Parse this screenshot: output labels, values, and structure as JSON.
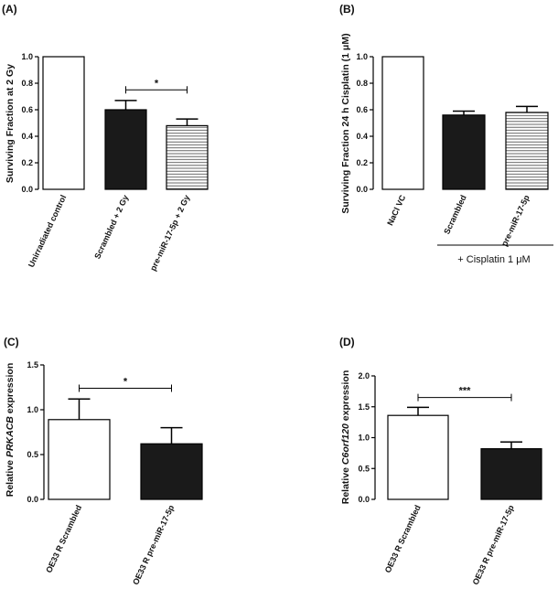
{
  "chart_data": [
    {
      "type": "bar",
      "panel_label": "(A)",
      "ylabel": "Surviving Fraction at 2 Gy",
      "ylim": [
        0,
        1.0
      ],
      "yticks": [
        "0.0",
        "0.2",
        "0.4",
        "0.6",
        "0.8",
        "1.0"
      ],
      "categories": [
        "Unirradiated control",
        "Scrambled + 2 Gy",
        "pre-miR-17-5p + 2 Gy"
      ],
      "values": [
        1.0,
        0.6,
        0.48
      ],
      "errors": [
        0,
        0.07,
        0.05
      ],
      "fills": [
        "white",
        "black",
        "hatched"
      ],
      "significance": {
        "from": 1,
        "to": 2,
        "label": "*"
      }
    },
    {
      "type": "bar",
      "panel_label": "(B)",
      "ylabel": "Surviving Fraction 24 h Cisplatin (1 μM)",
      "ylim": [
        0,
        1.0
      ],
      "yticks": [
        "0.0",
        "0.2",
        "0.4",
        "0.6",
        "0.8",
        "1.0"
      ],
      "categories": [
        "NaCl VC",
        "Scrambled",
        "pre-miR-17-5p"
      ],
      "values": [
        1.0,
        0.56,
        0.58
      ],
      "errors": [
        0,
        0.03,
        0.045
      ],
      "fills": [
        "white",
        "black",
        "hatched"
      ],
      "group_annotation": "+ Cisplatin 1  μM"
    },
    {
      "type": "bar",
      "panel_label": "(C)",
      "ylabel_pre": "Relative ",
      "ylabel_italic": "PRKACB",
      "ylabel_post": " expression",
      "ylim": [
        0,
        1.5
      ],
      "yticks": [
        "0.0",
        "0.5",
        "1.0",
        "1.5"
      ],
      "categories": [
        "OE33 R Scrambled",
        "OE33 R pre-miR-17-5p"
      ],
      "values": [
        0.89,
        0.62
      ],
      "errors": [
        0.23,
        0.18
      ],
      "fills": [
        "white",
        "black"
      ],
      "significance": {
        "from": 0,
        "to": 1,
        "label": "*"
      }
    },
    {
      "type": "bar",
      "panel_label": "(D)",
      "ylabel_pre": "Relative ",
      "ylabel_italic": "C6orf120",
      "ylabel_post": " expression",
      "ylim": [
        0,
        2.0
      ],
      "yticks": [
        "0.0",
        "0.5",
        "1.0",
        "1.5",
        "2.0"
      ],
      "categories": [
        "OE33 R Scrambled",
        "OE33 R pre-miR-17-5p"
      ],
      "values": [
        1.36,
        0.82
      ],
      "errors": [
        0.13,
        0.11
      ],
      "fills": [
        "white",
        "black"
      ],
      "significance": {
        "from": 0,
        "to": 1,
        "label": "***"
      }
    }
  ]
}
